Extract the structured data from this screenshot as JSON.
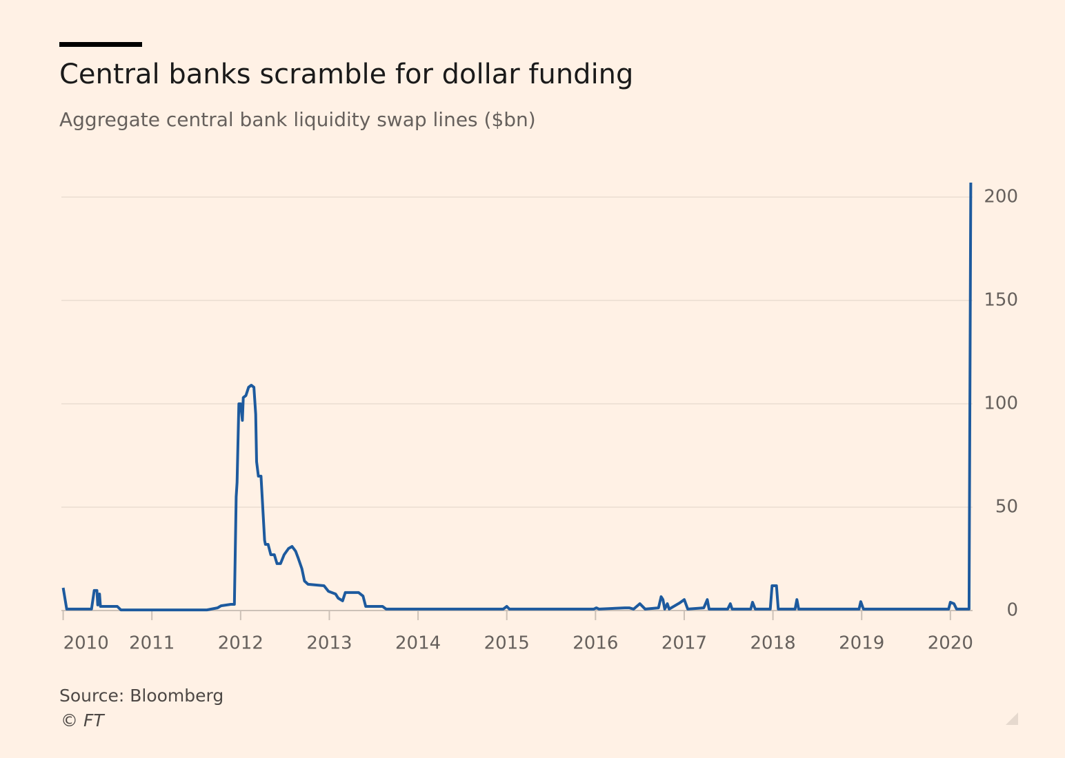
{
  "chart_data": {
    "type": "line",
    "title": "Central banks scramble for dollar funding",
    "subtitle": "Aggregate central bank liquidity swap lines ($bn)",
    "source": "Source: Bloomberg",
    "credit": "© FT",
    "xlim": [
      2009.98,
      2020.25
    ],
    "xticks": [
      2010,
      2011,
      2012,
      2013,
      2014,
      2015,
      2016,
      2017,
      2018,
      2019,
      2020
    ],
    "ylim": [
      0,
      210
    ],
    "yticks": [
      0,
      50,
      100,
      150,
      200
    ],
    "grid": true,
    "series": [
      {
        "color": "#1d5a9e",
        "x": [
          2010.0,
          2010.04,
          2010.32,
          2010.35,
          2010.38,
          2010.39,
          2010.41,
          2010.42,
          2010.61,
          2010.65,
          2011.62,
          2011.74,
          2011.78,
          2011.89,
          2011.93,
          2011.95,
          2011.96,
          2011.98,
          2012.0,
          2012.02,
          2012.03,
          2012.06,
          2012.09,
          2012.12,
          2012.15,
          2012.17,
          2012.18,
          2012.2,
          2012.23,
          2012.27,
          2012.28,
          2012.31,
          2012.34,
          2012.38,
          2012.41,
          2012.45,
          2012.49,
          2012.54,
          2012.58,
          2012.62,
          2012.65,
          2012.69,
          2012.72,
          2012.76,
          2012.94,
          2012.99,
          2013.07,
          2013.1,
          2013.15,
          2013.18,
          2013.33,
          2013.38,
          2013.41,
          2013.6,
          2013.64,
          2014.96,
          2015.0,
          2015.03,
          2015.98,
          2016.01,
          2016.04,
          2016.33,
          2016.38,
          2016.43,
          2016.5,
          2016.56,
          2016.71,
          2016.74,
          2016.76,
          2016.78,
          2016.81,
          2016.83,
          2016.95,
          2017.0,
          2017.04,
          2017.22,
          2017.26,
          2017.28,
          2017.49,
          2017.52,
          2017.54,
          2017.75,
          2017.77,
          2017.8,
          2017.97,
          2017.99,
          2018.04,
          2018.06,
          2018.25,
          2018.27,
          2018.29,
          2018.97,
          2018.99,
          2019.02,
          2019.98,
          2020.0,
          2020.04,
          2020.07,
          2020.21,
          2020.23
        ],
        "values": [
          11,
          0.7,
          0.7,
          9.7,
          9.7,
          2.7,
          8,
          2,
          2,
          0.3,
          0.3,
          1.3,
          2.3,
          3,
          3,
          55,
          62,
          100,
          100,
          92,
          103,
          104,
          108,
          109,
          108,
          95,
          72,
          65,
          65,
          34,
          32,
          32,
          27,
          27,
          22.7,
          22.7,
          27,
          30,
          31,
          28.7,
          25.3,
          20.3,
          14.3,
          12.7,
          12,
          9.3,
          8,
          6,
          4.7,
          8.7,
          8.7,
          7,
          2,
          2,
          0.7,
          0.7,
          2,
          0.7,
          0.7,
          1.3,
          0.7,
          1.3,
          1.3,
          0.7,
          3.3,
          0.7,
          1.3,
          6.7,
          5.3,
          0.7,
          3.3,
          0.7,
          3.7,
          5.3,
          0.7,
          1.3,
          5.3,
          0.7,
          0.7,
          3.3,
          0.7,
          0.7,
          4,
          0.7,
          0.7,
          12,
          12,
          0.7,
          0.7,
          5.3,
          0.7,
          0.7,
          4.3,
          0.7,
          0.7,
          4,
          3.3,
          0.7,
          0.7,
          207
        ]
      }
    ]
  }
}
